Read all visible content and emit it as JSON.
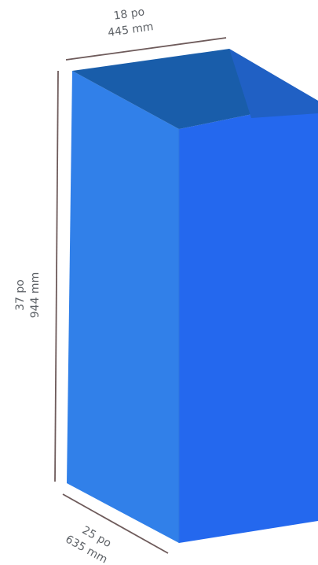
{
  "dimensions": {
    "width": {
      "imperial": "18 po",
      "metric": "445 mm"
    },
    "height": {
      "imperial": "37 po",
      "metric": "944 mm"
    },
    "depth": {
      "imperial": "25 po",
      "metric": "635 mm"
    }
  },
  "colors": {
    "front_face": "#3180e9",
    "side_face": "#2468ee",
    "top_back": "#195daa",
    "top_inner_right": "#2060c4",
    "dimension_line": "#6e5b5b",
    "label_text": "#5f6368"
  }
}
